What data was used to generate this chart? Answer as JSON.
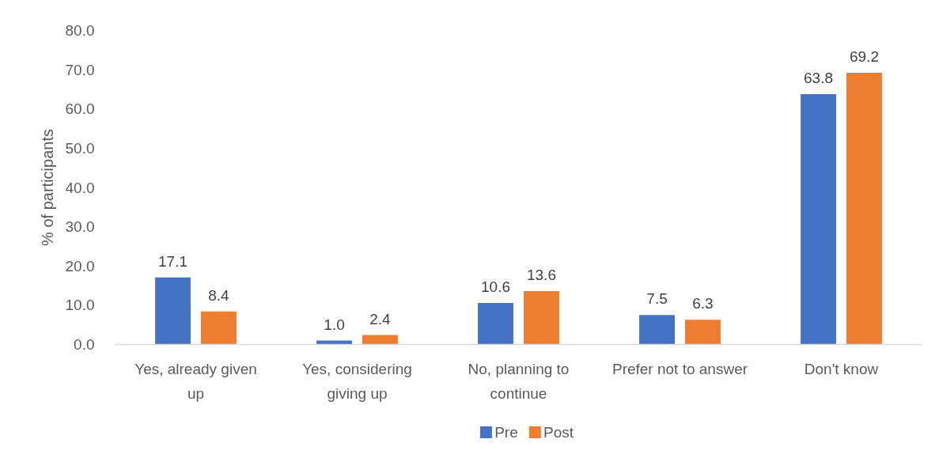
{
  "chart_data": {
    "type": "bar",
    "ylabel": "% of participants",
    "categories": [
      "Yes, already given up",
      "Yes, considering giving up",
      "No, planning to continue",
      "Prefer not to answer",
      "Don't know"
    ],
    "series": [
      {
        "name": "Pre",
        "color": "#4472c4",
        "values": [
          17.1,
          1.0,
          10.6,
          7.5,
          63.8
        ],
        "value_labels": [
          "17.1",
          "1.0",
          "10.6",
          "7.5",
          "63.8"
        ]
      },
      {
        "name": "Post",
        "color": "#ed7d31",
        "values": [
          8.4,
          2.4,
          13.6,
          6.3,
          69.2
        ],
        "value_labels": [
          "8.4",
          "2.4",
          "13.6",
          "6.3",
          "69.2"
        ]
      }
    ],
    "ylim": [
      0,
      80
    ],
    "yticks": [
      {
        "value": 0,
        "label": "0.0"
      },
      {
        "value": 10,
        "label": "10.0"
      },
      {
        "value": 20,
        "label": "20.0"
      },
      {
        "value": 30,
        "label": "30.0"
      },
      {
        "value": 40,
        "label": "40.0"
      },
      {
        "value": 50,
        "label": "50.0"
      },
      {
        "value": 60,
        "label": "60.0"
      },
      {
        "value": 70,
        "label": "70.0"
      },
      {
        "value": 80,
        "label": "80.0"
      }
    ],
    "legend": "bottom"
  }
}
